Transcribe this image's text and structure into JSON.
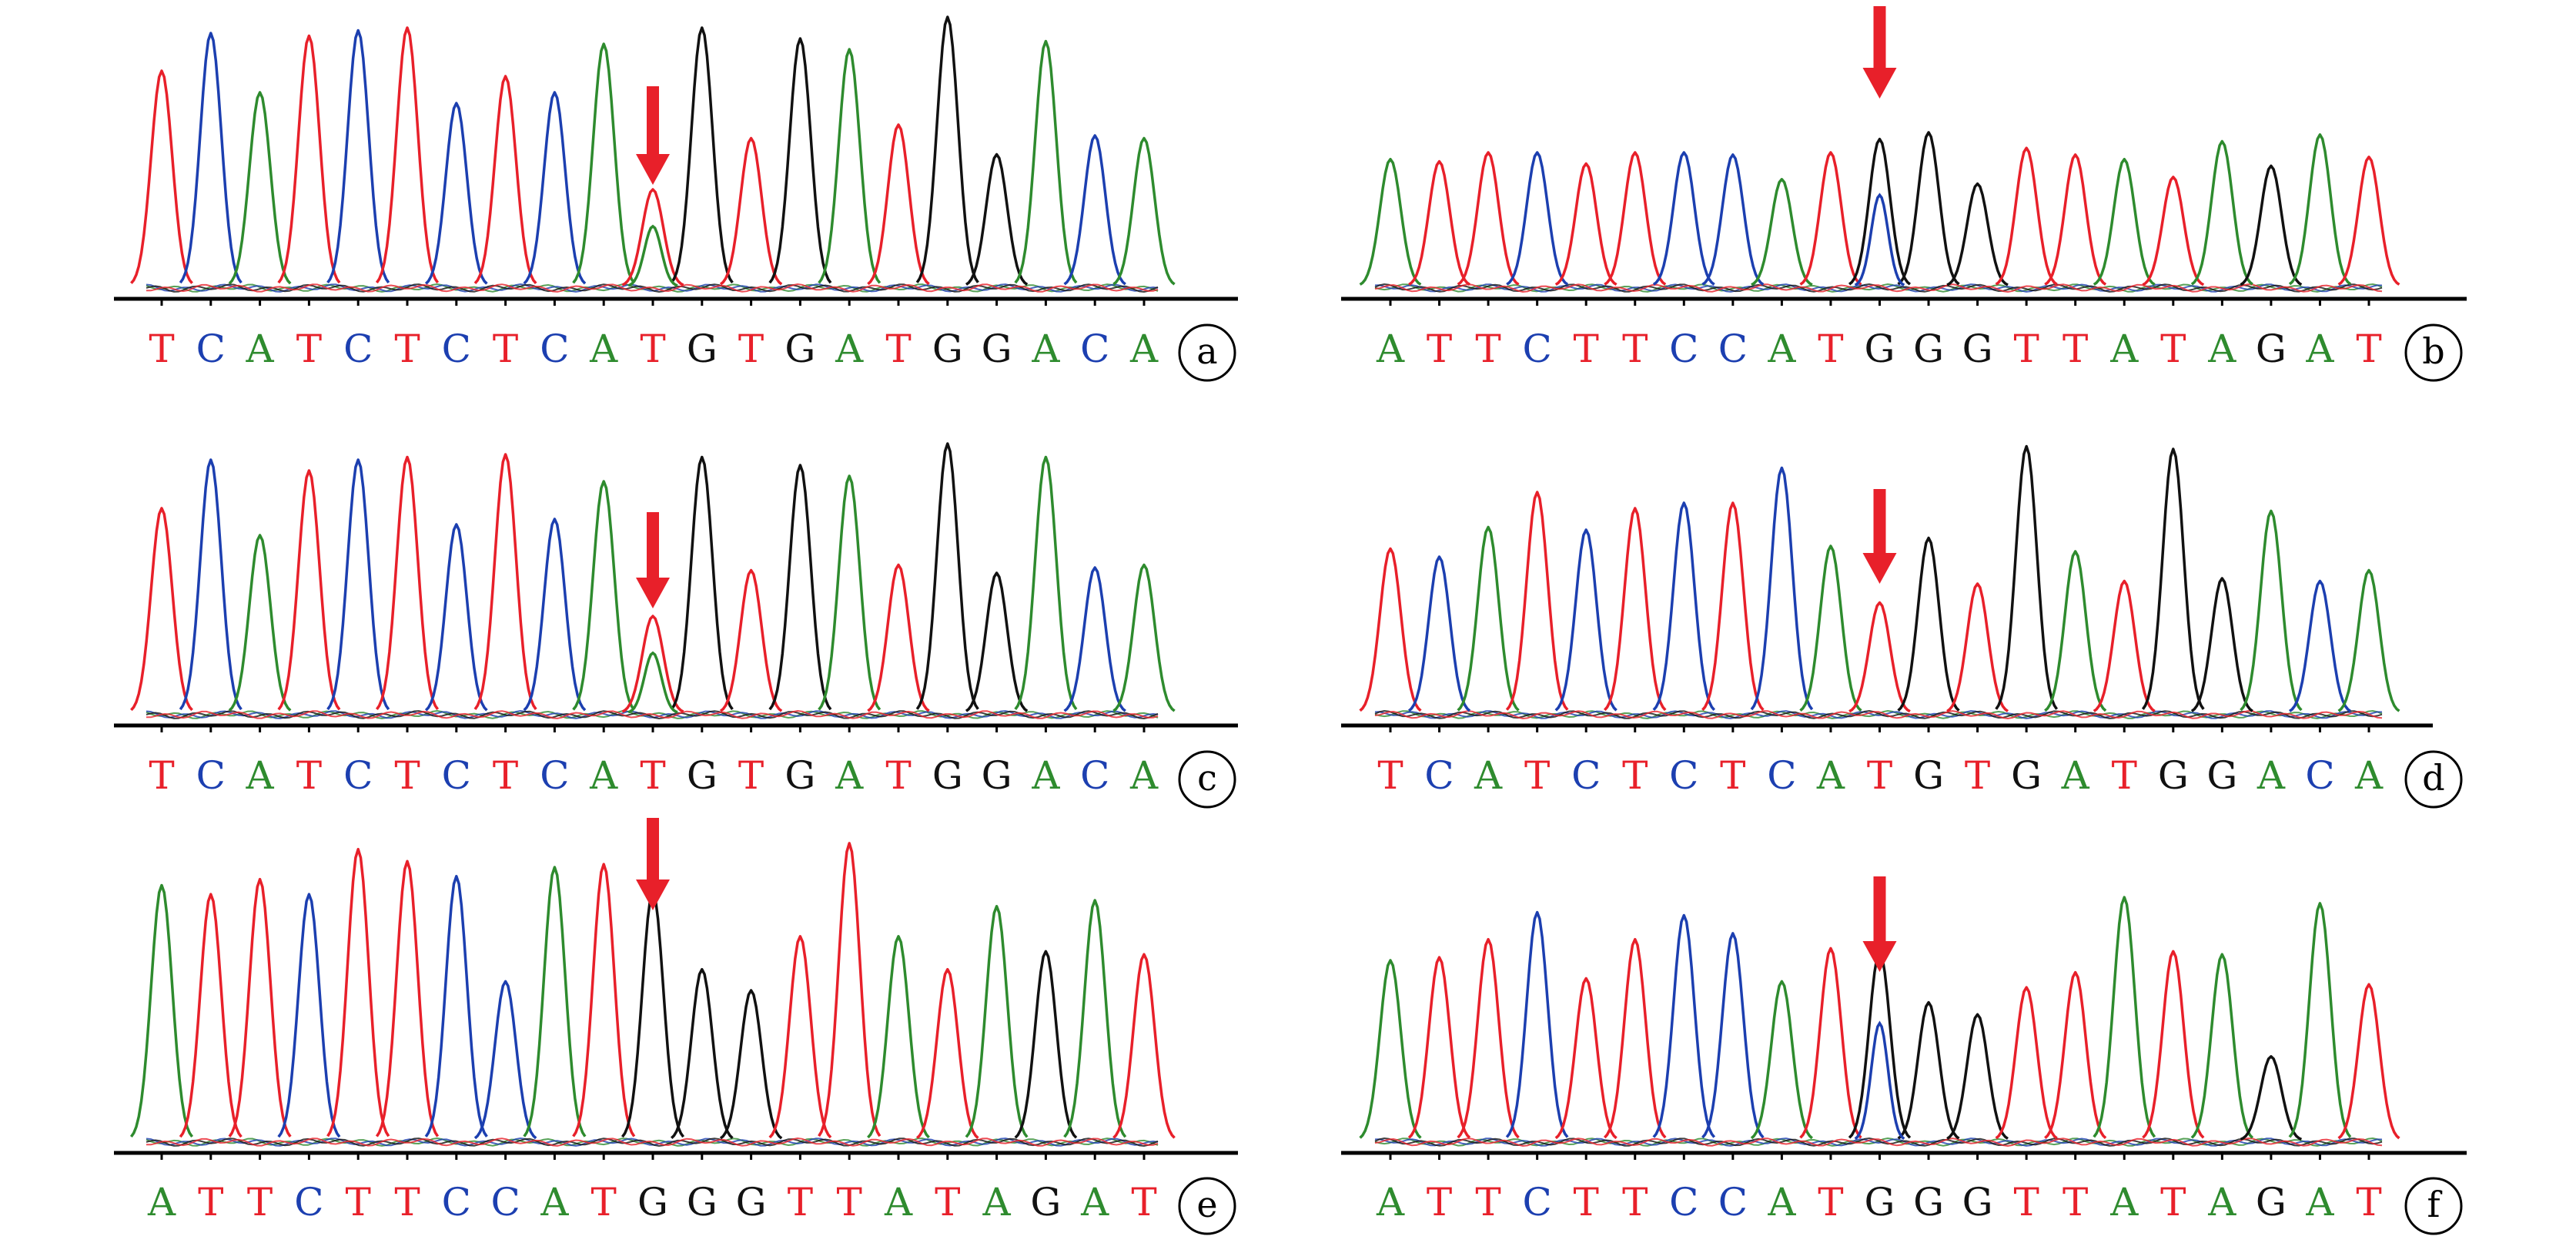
{
  "figure": {
    "colors": {
      "A": "#2e8b2e",
      "C": "#1c3fb0",
      "G": "#111111",
      "T": "#e8202a",
      "arrow": "#e8202a",
      "axis": "#000000"
    },
    "panels": [
      {
        "label": "a",
        "bases": [
          "T",
          "C",
          "A",
          "T",
          "C",
          "T",
          "C",
          "T",
          "C",
          "A",
          "T",
          "G",
          "T",
          "G",
          "A",
          "T",
          "G",
          "G",
          "A",
          "C",
          "A"
        ],
        "arrow_base_index": 10,
        "secondary_peak": {
          "index": 10,
          "base": "A"
        }
      },
      {
        "label": "b",
        "bases": [
          "A",
          "T",
          "T",
          "C",
          "T",
          "T",
          "C",
          "C",
          "A",
          "T",
          "G",
          "G",
          "G",
          "T",
          "T",
          "A",
          "T",
          "A",
          "G",
          "A",
          "T"
        ],
        "arrow_base_index": 10,
        "secondary_peak": {
          "index": 10,
          "base": "C"
        }
      },
      {
        "label": "c",
        "bases": [
          "T",
          "C",
          "A",
          "T",
          "C",
          "T",
          "C",
          "T",
          "C",
          "A",
          "T",
          "G",
          "T",
          "G",
          "A",
          "T",
          "G",
          "G",
          "A",
          "C",
          "A"
        ],
        "arrow_base_index": 10,
        "secondary_peak": {
          "index": 10,
          "base": "A"
        }
      },
      {
        "label": "d",
        "bases": [
          "T",
          "C",
          "A",
          "T",
          "C",
          "T",
          "C",
          "T",
          "C",
          "A",
          "T",
          "G",
          "T",
          "G",
          "A",
          "T",
          "G",
          "G",
          "A",
          "C",
          "A"
        ],
        "arrow_base_index": 10,
        "secondary_peak": null
      },
      {
        "label": "e",
        "bases": [
          "A",
          "T",
          "T",
          "C",
          "T",
          "T",
          "C",
          "C",
          "A",
          "T",
          "G",
          "G",
          "G",
          "T",
          "T",
          "A",
          "T",
          "A",
          "G",
          "A",
          "T"
        ],
        "arrow_base_index": 10,
        "secondary_peak": null
      },
      {
        "label": "f",
        "bases": [
          "A",
          "T",
          "T",
          "C",
          "T",
          "T",
          "C",
          "C",
          "A",
          "T",
          "G",
          "G",
          "G",
          "T",
          "T",
          "A",
          "T",
          "A",
          "G",
          "A",
          "T"
        ],
        "arrow_base_index": 10,
        "secondary_peak": {
          "index": 10,
          "base": "C"
        }
      }
    ]
  }
}
